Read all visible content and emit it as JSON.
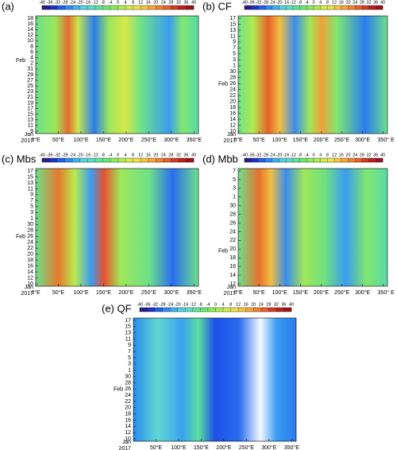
{
  "chart_data": [
    {
      "type": "heatmap",
      "title": "(a)",
      "xlim": [
        0,
        360
      ],
      "xticks": [
        {
          "value": 0,
          "label": "0°E"
        },
        {
          "value": 50,
          "label": "50°E"
        },
        {
          "value": 100,
          "label": "100°E"
        },
        {
          "value": 150,
          "label": "150°E"
        },
        {
          "value": 200,
          "label": "200°E"
        },
        {
          "value": 250,
          "label": "250°E"
        },
        {
          "value": 300,
          "label": "300°E"
        },
        {
          "value": 350,
          "label": "350°E"
        }
      ],
      "y_labels": [
        "9",
        "11",
        "13",
        "15",
        "17",
        "19",
        "21",
        "23",
        "25",
        "27",
        "29",
        "31",
        "2",
        "4",
        "6",
        "8",
        "10",
        "12",
        "14",
        "16",
        "18"
      ],
      "y_label_colors": [
        "#000",
        "#000",
        "#000",
        "#000",
        "#000",
        "#000",
        "#000",
        "#000",
        "#000",
        "#000",
        "#d0021b",
        "#000",
        "#000",
        "#000",
        "#000",
        "#000",
        "#000",
        "#d0021b",
        "#000",
        "#000",
        "#000"
      ],
      "month_labels": [
        "Jan",
        "2017",
        "Feb"
      ],
      "cbar_lim": [
        -40,
        40
      ],
      "cbar_ticks": [
        -40,
        -36,
        -32,
        -28,
        -24,
        -20,
        -16,
        -12,
        -8,
        -4,
        0,
        4,
        8,
        12,
        16,
        20,
        24,
        28,
        32,
        36,
        40
      ]
    },
    {
      "type": "heatmap",
      "title": "(b) CF",
      "xlim": [
        0,
        360
      ],
      "xticks": [
        {
          "value": 0,
          "label": "0°E"
        },
        {
          "value": 50,
          "label": "50°E"
        },
        {
          "value": 100,
          "label": "100°E"
        },
        {
          "value": 150,
          "label": "150°E"
        },
        {
          "value": 200,
          "label": "200°E"
        },
        {
          "value": 250,
          "label": "250°E"
        },
        {
          "value": 300,
          "label": "300°E"
        },
        {
          "value": 350,
          "label": "350°"
        }
      ],
      "x_end_label": "E",
      "y_labels": [
        "10",
        "12",
        "14",
        "16",
        "18",
        "20",
        "22",
        "24",
        "26",
        "28",
        "30",
        "1",
        "3",
        "5",
        "7",
        "9",
        "11",
        "13",
        "15",
        "17"
      ],
      "y_label_colors": [
        "#000",
        "#000",
        "#000",
        "#000",
        "#000",
        "#000",
        "#d0021b",
        "#000",
        "#000",
        "#000",
        "#000",
        "#000",
        "#000",
        "#d0021b",
        "#000",
        "#000",
        "#000",
        "#000",
        "#000",
        "#000"
      ],
      "month_labels": [
        "Jan",
        "2017",
        "Feb"
      ],
      "cbar_lim": [
        -40,
        40
      ],
      "cbar_ticks": [
        -40,
        -36,
        -32,
        -28,
        -24,
        -20,
        -16,
        -12,
        -8,
        -4,
        0,
        4,
        8,
        12,
        16,
        20,
        24,
        28,
        32,
        36,
        40
      ]
    },
    {
      "type": "heatmap",
      "title": "(c) Mbs",
      "xlim": [
        0,
        360
      ],
      "xticks": [
        {
          "value": 0,
          "label": "0°E"
        },
        {
          "value": 50,
          "label": "50°E"
        },
        {
          "value": 100,
          "label": "100°E"
        },
        {
          "value": 150,
          "label": "150°E"
        },
        {
          "value": 200,
          "label": "200°E"
        },
        {
          "value": 250,
          "label": "250°E"
        },
        {
          "value": 300,
          "label": "300°E"
        },
        {
          "value": 350,
          "label": "350°E"
        }
      ],
      "y_labels": [
        "10",
        "12",
        "14",
        "16",
        "18",
        "20",
        "22",
        "24",
        "26",
        "28",
        "30",
        "1",
        "3",
        "5",
        "7",
        "9",
        "11",
        "13",
        "15",
        "17"
      ],
      "y_label_colors": [
        "#000",
        "#000",
        "#000",
        "#000",
        "#000",
        "#000",
        "#d0021b",
        "#000",
        "#000",
        "#000",
        "#000",
        "#000",
        "#000",
        "#d0021b",
        "#000",
        "#000",
        "#000",
        "#000",
        "#000",
        "#000"
      ],
      "month_labels": [
        "Jan",
        "2017",
        "Feb"
      ],
      "cbar_lim": [
        -40,
        40
      ],
      "cbar_ticks": [
        -40,
        -36,
        -32,
        -28,
        -24,
        -20,
        -16,
        -12,
        -8,
        -4,
        0,
        4,
        8,
        12,
        16,
        20,
        24,
        28,
        32,
        36,
        40
      ]
    },
    {
      "type": "heatmap",
      "title": "(d) Mbb",
      "xlim": [
        0,
        360
      ],
      "xticks": [
        {
          "value": 0,
          "label": "0°E"
        },
        {
          "value": 50,
          "label": "50°E"
        },
        {
          "value": 100,
          "label": "100°E"
        },
        {
          "value": 150,
          "label": "150°E"
        },
        {
          "value": 200,
          "label": "200°E"
        },
        {
          "value": 250,
          "label": "250°E"
        },
        {
          "value": 300,
          "label": "300°E"
        },
        {
          "value": 350,
          "label": "350°"
        }
      ],
      "x_end_label": "E",
      "y_labels": [
        "12",
        "14",
        "16",
        "18",
        "20",
        "22",
        "24",
        "26",
        "28",
        "30",
        "1",
        "3",
        "5",
        "7"
      ],
      "y_label_colors": [
        "#000",
        "#000",
        "#000",
        "#000",
        "#000",
        "#d0021b",
        "#000",
        "#000",
        "#000",
        "#000",
        "#000",
        "#000",
        "#d0021b",
        "#000"
      ],
      "month_labels": [
        "Jan",
        "2017",
        "Feb"
      ],
      "cbar_lim": [
        -40,
        40
      ],
      "cbar_ticks": [
        -40,
        -36,
        -32,
        -28,
        -24,
        -20,
        -16,
        -12,
        -8,
        -4,
        0,
        4,
        8,
        12,
        16,
        20,
        24,
        28,
        32,
        36,
        40
      ]
    },
    {
      "type": "heatmap",
      "title": "(e) QF",
      "xlim": [
        0,
        360
      ],
      "xticks": [
        {
          "value": 50,
          "label": "50°E"
        },
        {
          "value": 100,
          "label": "100°E"
        },
        {
          "value": 150,
          "label": "150°E"
        },
        {
          "value": 200,
          "label": "200°E"
        },
        {
          "value": 250,
          "label": "250°E"
        },
        {
          "value": 300,
          "label": "300°E"
        },
        {
          "value": 350,
          "label": "350°E"
        }
      ],
      "y_labels": [
        "10",
        "12",
        "14",
        "16",
        "18",
        "20",
        "22",
        "24",
        "26",
        "28",
        "30",
        "1",
        "3",
        "5",
        "7",
        "9",
        "11",
        "13",
        "15",
        "17"
      ],
      "y_label_colors": [
        "#000",
        "#000",
        "#000",
        "#000",
        "#000",
        "#000",
        "#d0021b",
        "#000",
        "#000",
        "#000",
        "#000",
        "#000",
        "#000",
        "#d0021b",
        "#000",
        "#000",
        "#000",
        "#000",
        "#000",
        "#000"
      ],
      "month_labels": [
        "Jan",
        "2017",
        "Feb"
      ],
      "cbar_lim": [
        -40,
        40
      ],
      "cbar_ticks": [
        -40,
        -36,
        -32,
        -28,
        -24,
        -20,
        -16,
        -12,
        -8,
        -4,
        0,
        4,
        8,
        12,
        16,
        20,
        24,
        28,
        32,
        36,
        40
      ]
    }
  ]
}
